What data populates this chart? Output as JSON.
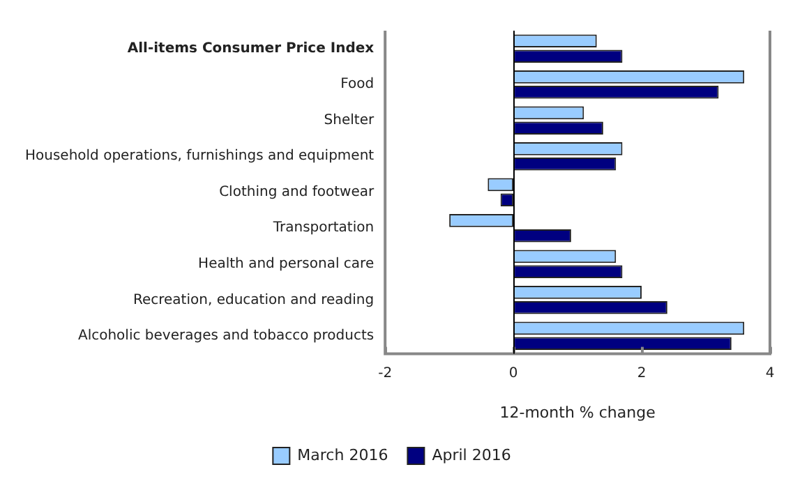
{
  "chart_data": {
    "type": "bar",
    "orientation": "horizontal",
    "xlabel": "12-month % change",
    "categories": [
      "All-items Consumer Price Index",
      "Food",
      "Shelter",
      "Household operations, furnishings and equipment",
      "Clothing and footwear",
      "Transportation",
      "Health and personal care",
      "Recreation, education and reading",
      "Alcoholic beverages and tobacco products"
    ],
    "series": [
      {
        "name": "March 2016",
        "color": "#99ccff",
        "values": [
          1.3,
          3.6,
          1.1,
          1.7,
          -0.4,
          -1.0,
          1.6,
          2.0,
          3.6
        ]
      },
      {
        "name": "April 2016",
        "color": "#000080",
        "values": [
          1.7,
          3.2,
          1.4,
          1.6,
          -0.2,
          0.9,
          1.7,
          2.4,
          3.4
        ]
      }
    ],
    "ref_lines": [
      {
        "axis": "x",
        "value": 0,
        "color": "#000000"
      }
    ],
    "xlim": [
      -2,
      4
    ],
    "xticks": [
      -2,
      0,
      2,
      4
    ],
    "grid": false,
    "legend": "bottom"
  }
}
